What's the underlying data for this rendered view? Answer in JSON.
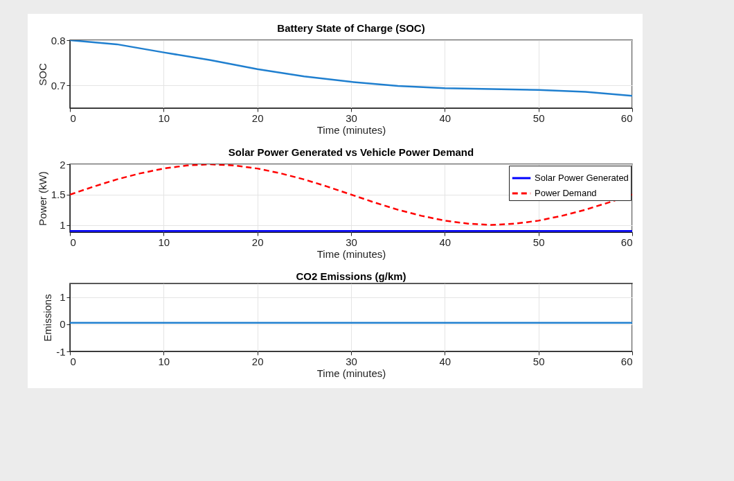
{
  "chart_data": [
    {
      "type": "line",
      "title": "Battery State of Charge (SOC)",
      "xlabel": "Time (minutes)",
      "ylabel": "SOC",
      "xlim": [
        0,
        60
      ],
      "xticks": [
        0,
        10,
        20,
        30,
        40,
        50,
        60
      ],
      "ylim": [
        0.65,
        0.8
      ],
      "yticks": [
        0.7,
        0.8
      ],
      "grid": true,
      "series": [
        {
          "color": "#1f7fcf",
          "line_style": "solid",
          "x": [
            0,
            5,
            10,
            15,
            20,
            25,
            30,
            35,
            40,
            45,
            50,
            55,
            60
          ],
          "values": [
            0.8,
            0.791,
            0.773,
            0.756,
            0.736,
            0.72,
            0.708,
            0.699,
            0.694,
            0.692,
            0.69,
            0.686,
            0.677
          ]
        }
      ]
    },
    {
      "type": "line",
      "title": "Solar Power Generated vs Vehicle Power Demand",
      "xlabel": "Time (minutes)",
      "ylabel": "Power (kW)",
      "xlim": [
        0,
        60
      ],
      "xticks": [
        0,
        10,
        20,
        30,
        40,
        50,
        60
      ],
      "ylim": [
        0.88,
        2
      ],
      "yticks": [
        1,
        1.5,
        2
      ],
      "grid": true,
      "legend": "top right",
      "series": [
        {
          "name": "Solar Power Generated",
          "color": "#0000ff",
          "line_style": "solid",
          "x": [
            0,
            60
          ],
          "values": [
            0.9,
            0.9
          ]
        },
        {
          "name": "Power Demand",
          "color": "#ff0000",
          "line_style": "dashed",
          "x": [
            0,
            2.5,
            5,
            7.5,
            10,
            12.5,
            15,
            17.5,
            20,
            22.5,
            25,
            27.5,
            30,
            32.5,
            35,
            37.5,
            40,
            42.5,
            45,
            47.5,
            50,
            52.5,
            55,
            57.5,
            60
          ],
          "values": [
            1.5,
            1.63,
            1.75,
            1.85,
            1.93,
            1.98,
            2,
            1.98,
            1.93,
            1.85,
            1.75,
            1.63,
            1.5,
            1.37,
            1.25,
            1.15,
            1.07,
            1.02,
            1,
            1.02,
            1.07,
            1.15,
            1.25,
            1.37,
            1.5
          ]
        }
      ]
    },
    {
      "type": "line",
      "title": "CO2 Emissions (g/km)",
      "xlabel": "Time (minutes)",
      "ylabel": "Emissions",
      "xlim": [
        0,
        60
      ],
      "xticks": [
        0,
        10,
        20,
        30,
        40,
        50,
        60
      ],
      "ylim": [
        -1,
        1.5
      ],
      "yticks": [
        -1,
        0,
        1
      ],
      "grid": true,
      "series": [
        {
          "color": "#1f7fcf",
          "line_style": "solid",
          "x": [
            0,
            60
          ],
          "values": [
            0.05,
            0.05
          ]
        }
      ]
    }
  ]
}
